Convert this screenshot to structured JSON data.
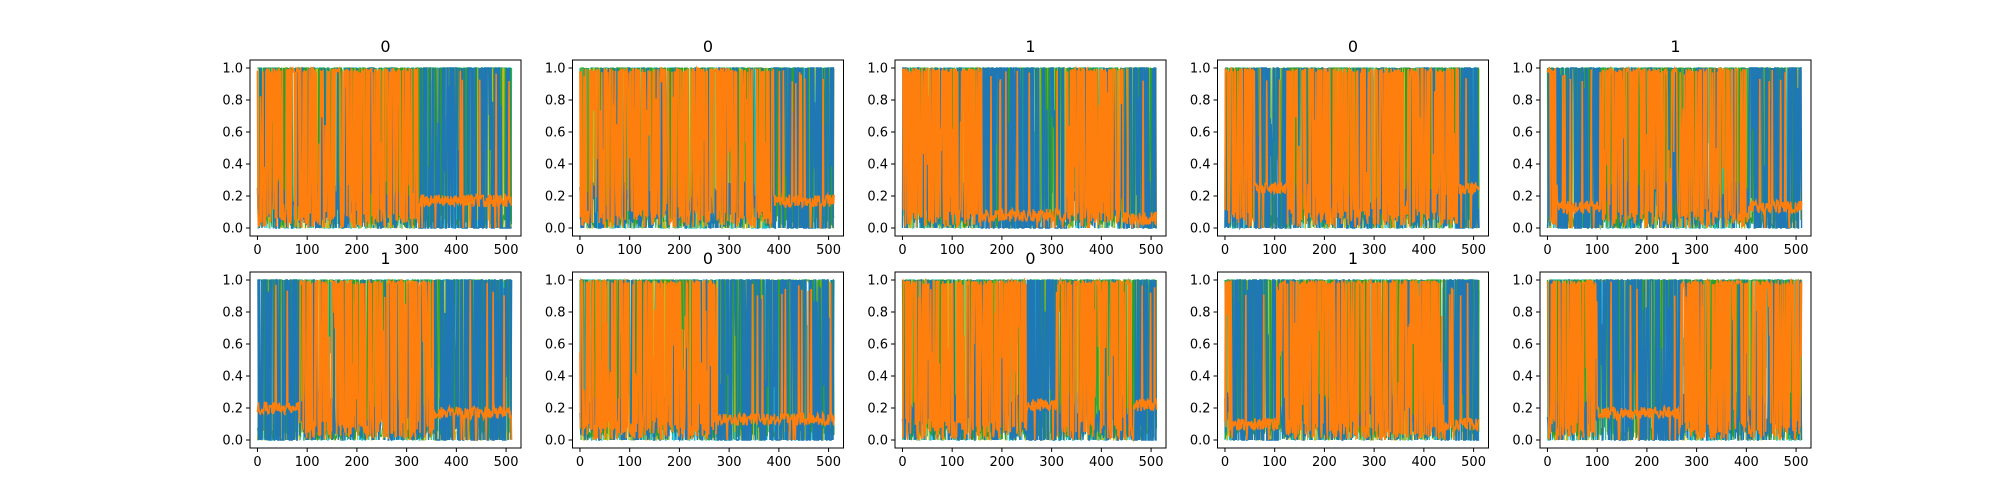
{
  "figure": {
    "layout": {
      "rows": 2,
      "cols": 5
    },
    "colors": {
      "teal": "#17becf",
      "olive": "#bcbd22",
      "green": "#2ca02c",
      "blue": "#1f77b4",
      "orange": "#ff7f0e",
      "frame": "#000000"
    }
  },
  "chart_data": [
    {
      "type": "line",
      "title": "0",
      "xlim": [
        -15,
        530
      ],
      "ylim": [
        -0.05,
        1.05
      ],
      "xticks": [
        "0",
        "100",
        "200",
        "300",
        "400",
        "500"
      ],
      "yticks": [
        "0.0",
        "0.2",
        "0.4",
        "0.6",
        "0.8",
        "1.0"
      ],
      "n_points": 512,
      "orange_segments": [
        {
          "x": [
            0,
            325
          ],
          "state": "high"
        },
        {
          "x": [
            325,
            512
          ],
          "state": "low",
          "level": 0.17
        }
      ]
    },
    {
      "type": "line",
      "title": "0",
      "xlim": [
        -15,
        530
      ],
      "ylim": [
        -0.05,
        1.05
      ],
      "xticks": [
        "0",
        "100",
        "200",
        "300",
        "400",
        "500"
      ],
      "yticks": [
        "0.0",
        "0.2",
        "0.4",
        "0.6",
        "0.8",
        "1.0"
      ],
      "n_points": 512,
      "orange_segments": [
        {
          "x": [
            0,
            390
          ],
          "state": "high"
        },
        {
          "x": [
            390,
            512
          ],
          "state": "low",
          "level": 0.17
        }
      ]
    },
    {
      "type": "line",
      "title": "1",
      "xlim": [
        -15,
        530
      ],
      "ylim": [
        -0.05,
        1.05
      ],
      "xticks": [
        "0",
        "100",
        "200",
        "300",
        "400",
        "500"
      ],
      "yticks": [
        "0.0",
        "0.2",
        "0.4",
        "0.6",
        "0.8",
        "1.0"
      ],
      "n_points": 512,
      "orange_segments": [
        {
          "x": [
            0,
            160
          ],
          "state": "high"
        },
        {
          "x": [
            160,
            330
          ],
          "state": "low",
          "level": 0.08
        },
        {
          "x": [
            330,
            445
          ],
          "state": "high"
        },
        {
          "x": [
            445,
            512
          ],
          "state": "low",
          "level": 0.06
        }
      ]
    },
    {
      "type": "line",
      "title": "0",
      "xlim": [
        -15,
        530
      ],
      "ylim": [
        -0.05,
        1.05
      ],
      "xticks": [
        "0",
        "100",
        "200",
        "300",
        "400",
        "500"
      ],
      "yticks": [
        "0.0",
        "0.2",
        "0.4",
        "0.6",
        "0.8",
        "1.0"
      ],
      "n_points": 512,
      "orange_segments": [
        {
          "x": [
            0,
            60
          ],
          "state": "high"
        },
        {
          "x": [
            60,
            125
          ],
          "state": "low",
          "level": 0.25
        },
        {
          "x": [
            125,
            470
          ],
          "state": "high"
        },
        {
          "x": [
            470,
            512
          ],
          "state": "low",
          "level": 0.25
        }
      ]
    },
    {
      "type": "line",
      "title": "1",
      "xlim": [
        -15,
        530
      ],
      "ylim": [
        -0.05,
        1.05
      ],
      "xticks": [
        "0",
        "100",
        "200",
        "300",
        "400",
        "500"
      ],
      "yticks": [
        "0.0",
        "0.2",
        "0.4",
        "0.6",
        "0.8",
        "1.0"
      ],
      "n_points": 512,
      "orange_segments": [
        {
          "x": [
            0,
            20
          ],
          "state": "high"
        },
        {
          "x": [
            20,
            105
          ],
          "state": "low",
          "level": 0.13
        },
        {
          "x": [
            105,
            405
          ],
          "state": "high"
        },
        {
          "x": [
            405,
            512
          ],
          "state": "low",
          "level": 0.13
        }
      ]
    },
    {
      "type": "line",
      "title": "1",
      "xlim": [
        -15,
        530
      ],
      "ylim": [
        -0.05,
        1.05
      ],
      "xticks": [
        "0",
        "100",
        "200",
        "300",
        "400",
        "500"
      ],
      "yticks": [
        "0.0",
        "0.2",
        "0.4",
        "0.6",
        "0.8",
        "1.0"
      ],
      "n_points": 512,
      "orange_segments": [
        {
          "x": [
            0,
            85
          ],
          "state": "low",
          "level": 0.2
        },
        {
          "x": [
            85,
            355
          ],
          "state": "high"
        },
        {
          "x": [
            355,
            512
          ],
          "state": "low",
          "level": 0.17
        }
      ]
    },
    {
      "type": "line",
      "title": "0",
      "xlim": [
        -15,
        530
      ],
      "ylim": [
        -0.05,
        1.05
      ],
      "xticks": [
        "0",
        "100",
        "200",
        "300",
        "400",
        "500"
      ],
      "yticks": [
        "0.0",
        "0.2",
        "0.4",
        "0.6",
        "0.8",
        "1.0"
      ],
      "n_points": 512,
      "orange_segments": [
        {
          "x": [
            0,
            275
          ],
          "state": "high"
        },
        {
          "x": [
            275,
            512
          ],
          "state": "low",
          "level": 0.13
        }
      ]
    },
    {
      "type": "line",
      "title": "0",
      "xlim": [
        -15,
        530
      ],
      "ylim": [
        -0.05,
        1.05
      ],
      "xticks": [
        "0",
        "100",
        "200",
        "300",
        "400",
        "500"
      ],
      "yticks": [
        "0.0",
        "0.2",
        "0.4",
        "0.6",
        "0.8",
        "1.0"
      ],
      "n_points": 512,
      "orange_segments": [
        {
          "x": [
            0,
            250
          ],
          "state": "high"
        },
        {
          "x": [
            250,
            310
          ],
          "state": "low",
          "level": 0.22
        },
        {
          "x": [
            310,
            465
          ],
          "state": "high"
        },
        {
          "x": [
            465,
            512
          ],
          "state": "low",
          "level": 0.22
        }
      ]
    },
    {
      "type": "line",
      "title": "1",
      "xlim": [
        -15,
        530
      ],
      "ylim": [
        -0.05,
        1.05
      ],
      "xticks": [
        "0",
        "100",
        "200",
        "300",
        "400",
        "500"
      ],
      "yticks": [
        "0.0",
        "0.2",
        "0.4",
        "0.6",
        "0.8",
        "1.0"
      ],
      "n_points": 512,
      "orange_segments": [
        {
          "x": [
            0,
            15
          ],
          "state": "high"
        },
        {
          "x": [
            15,
            110
          ],
          "state": "low",
          "level": 0.1
        },
        {
          "x": [
            110,
            440
          ],
          "state": "high"
        },
        {
          "x": [
            440,
            512
          ],
          "state": "low",
          "level": 0.1
        }
      ]
    },
    {
      "type": "line",
      "title": "1",
      "xlim": [
        -15,
        530
      ],
      "ylim": [
        -0.05,
        1.05
      ],
      "xticks": [
        "0",
        "100",
        "200",
        "300",
        "400",
        "500"
      ],
      "yticks": [
        "0.0",
        "0.2",
        "0.4",
        "0.6",
        "0.8",
        "1.0"
      ],
      "n_points": 512,
      "orange_segments": [
        {
          "x": [
            0,
            100
          ],
          "state": "high"
        },
        {
          "x": [
            100,
            265
          ],
          "state": "low",
          "level": 0.17
        },
        {
          "x": [
            265,
            512
          ],
          "state": "high"
        }
      ]
    }
  ]
}
